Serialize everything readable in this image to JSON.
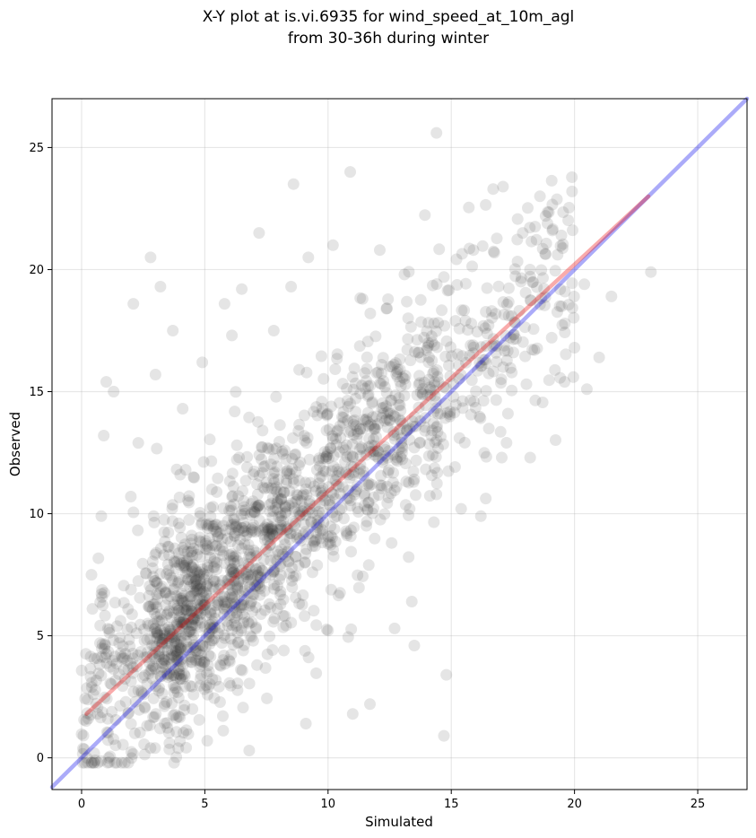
{
  "chart_data": {
    "type": "scatter",
    "title_lines": [
      "X-Y plot at is.vi.6935 for wind_speed_at_10m_agl",
      "from 30-36h during winter"
    ],
    "xlabel": "Simulated",
    "ylabel": "Observed",
    "xlim": [
      -1.2,
      27.0
    ],
    "ylim": [
      -1.3,
      27.0
    ],
    "xticks": [
      0,
      5,
      10,
      15,
      20,
      25
    ],
    "yticks": [
      0,
      5,
      10,
      15,
      20,
      25
    ],
    "grid": true,
    "point_color": "#333333",
    "point_opacity": 0.13,
    "reference_line": {
      "x": [
        -1.2,
        27.0
      ],
      "y": [
        -1.2,
        27.0
      ],
      "color": "#0000ee",
      "opacity": 0.33
    },
    "fit_line": {
      "x": [
        0.2,
        23.0
      ],
      "y": [
        1.8,
        23.0
      ],
      "color": "#ee0000",
      "opacity": 0.33
    },
    "outlier_points": [
      [
        14.4,
        25.6
      ],
      [
        10.9,
        24.0
      ],
      [
        8.6,
        23.5
      ],
      [
        17.1,
        23.4
      ],
      [
        19.9,
        23.2
      ],
      [
        18.6,
        23.0
      ],
      [
        7.2,
        21.5
      ],
      [
        2.8,
        20.5
      ],
      [
        9.2,
        20.5
      ],
      [
        3.2,
        19.3
      ],
      [
        6.5,
        19.2
      ],
      [
        2.1,
        18.6
      ],
      [
        3.7,
        17.5
      ],
      [
        1.0,
        15.4
      ],
      [
        1.3,
        15.0
      ],
      [
        0.9,
        13.2
      ],
      [
        20.0,
        16.8
      ],
      [
        21.0,
        16.4
      ],
      [
        21.5,
        18.9
      ],
      [
        23.1,
        19.9
      ],
      [
        20.5,
        15.1
      ],
      [
        18.2,
        12.3
      ],
      [
        16.2,
        9.9
      ],
      [
        15.4,
        10.2
      ],
      [
        14.8,
        3.4
      ],
      [
        14.7,
        0.9
      ],
      [
        13.5,
        4.6
      ],
      [
        11.7,
        2.2
      ],
      [
        11.0,
        1.8
      ],
      [
        9.1,
        1.4
      ],
      [
        6.8,
        0.3
      ],
      [
        5.1,
        0.7
      ],
      [
        2.8,
        0.4
      ],
      [
        1.1,
        0.0
      ],
      [
        0.4,
        7.5
      ],
      [
        0.8,
        9.9
      ],
      [
        2.0,
        10.7
      ],
      [
        4.1,
        14.3
      ],
      [
        3.0,
        15.7
      ],
      [
        2.3,
        12.9
      ],
      [
        19.6,
        15.4
      ],
      [
        19.4,
        18.5
      ],
      [
        17.3,
        14.1
      ],
      [
        12.7,
        5.3
      ],
      [
        13.4,
        6.4
      ],
      [
        15.9,
        20.8
      ],
      [
        16.7,
        23.3
      ],
      [
        17.9,
        21.5
      ],
      [
        19.1,
        21.6
      ],
      [
        20.4,
        19.4
      ],
      [
        12.1,
        20.8
      ],
      [
        13.1,
        19.8
      ],
      [
        11.4,
        18.8
      ],
      [
        10.2,
        21.0
      ],
      [
        8.5,
        19.3
      ],
      [
        7.8,
        17.5
      ],
      [
        5.8,
        18.6
      ],
      [
        6.1,
        17.3
      ],
      [
        4.9,
        16.2
      ],
      [
        4.0,
        11.6
      ]
    ]
  }
}
